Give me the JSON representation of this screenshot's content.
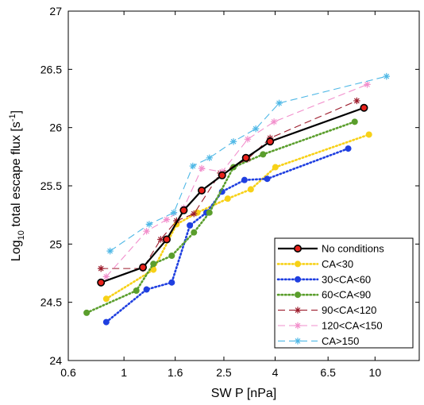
{
  "chart_data": {
    "type": "line",
    "xlabel": "SW P [nPa]",
    "ylabel_main": "Log",
    "ylabel_sub": "10",
    "ylabel_rest": " total escape flux [s",
    "ylabel_sup": "-1",
    "ylabel_end": "]",
    "xscale": "log",
    "xlim": [
      0.6,
      15
    ],
    "ylim": [
      24,
      27
    ],
    "xticks": [
      0.6,
      1,
      1.6,
      2.5,
      4,
      6.5,
      10
    ],
    "xtick_labels": [
      "0.6",
      "1",
      "1.6",
      "2.5",
      "4",
      "6.5",
      "10"
    ],
    "yticks": [
      24,
      24.5,
      25,
      25.5,
      26,
      26.5,
      27
    ],
    "ytick_labels": [
      "24",
      "24.5",
      "25",
      "25.5",
      "26",
      "26.5",
      "27"
    ],
    "legend_position": "bottom-right",
    "series": [
      {
        "name": "No conditions",
        "color": "#000000",
        "marker_fill": "#e8221b",
        "style": "solid",
        "marker": "circle",
        "points": [
          [
            0.81,
            24.67
          ],
          [
            1.19,
            24.8
          ],
          [
            1.48,
            25.04
          ],
          [
            1.73,
            25.29
          ],
          [
            2.04,
            25.46
          ],
          [
            2.46,
            25.59
          ],
          [
            3.06,
            25.74
          ],
          [
            3.82,
            25.88
          ],
          [
            9.04,
            26.17
          ]
        ]
      },
      {
        "name": "CA<30",
        "color": "#f7d117",
        "style": "dotted",
        "marker": "dot",
        "points": [
          [
            0.85,
            24.53
          ],
          [
            1.31,
            24.78
          ],
          [
            1.62,
            25.17
          ],
          [
            1.96,
            25.27
          ],
          [
            2.59,
            25.39
          ],
          [
            3.2,
            25.47
          ],
          [
            4.01,
            25.66
          ],
          [
            9.46,
            25.94
          ]
        ]
      },
      {
        "name": "30<CA<60",
        "color": "#1f3fe0",
        "style": "dotted",
        "marker": "dot",
        "points": [
          [
            0.85,
            24.33
          ],
          [
            1.23,
            24.61
          ],
          [
            1.55,
            24.67
          ],
          [
            1.83,
            25.16
          ],
          [
            2.13,
            25.27
          ],
          [
            2.46,
            25.45
          ],
          [
            3.02,
            25.55
          ],
          [
            3.72,
            25.56
          ],
          [
            7.82,
            25.82
          ]
        ]
      },
      {
        "name": "60<CA<90",
        "color": "#5a9e2c",
        "style": "dotted",
        "marker": "dot",
        "points": [
          [
            0.71,
            24.41
          ],
          [
            1.12,
            24.6
          ],
          [
            1.31,
            24.83
          ],
          [
            1.55,
            24.9
          ],
          [
            1.9,
            25.1
          ],
          [
            2.19,
            25.27
          ],
          [
            2.73,
            25.66
          ],
          [
            3.58,
            25.77
          ],
          [
            8.3,
            26.05
          ]
        ]
      },
      {
        "name": "90<CA<120",
        "color": "#9c1b2b",
        "style": "dashed",
        "marker": "star",
        "points": [
          [
            0.81,
            24.79
          ],
          [
            1.19,
            24.79
          ],
          [
            1.4,
            25.04
          ],
          [
            1.62,
            25.2
          ],
          [
            1.9,
            25.26
          ],
          [
            2.42,
            25.61
          ],
          [
            3.11,
            25.73
          ],
          [
            3.82,
            25.91
          ],
          [
            8.46,
            26.23
          ]
        ]
      },
      {
        "name": "120<CA<150",
        "color": "#f28fcc",
        "style": "dashed",
        "marker": "star",
        "points": [
          [
            0.85,
            24.72
          ],
          [
            1.23,
            25.11
          ],
          [
            1.48,
            25.21
          ],
          [
            1.73,
            25.31
          ],
          [
            2.04,
            25.65
          ],
          [
            2.46,
            25.62
          ],
          [
            3.11,
            25.9
          ],
          [
            3.96,
            26.05
          ],
          [
            9.31,
            26.37
          ]
        ]
      },
      {
        "name": "CA>150",
        "color": "#4fb8e6",
        "style": "dashed",
        "marker": "star",
        "points": [
          [
            0.88,
            24.94
          ],
          [
            1.26,
            25.17
          ],
          [
            1.58,
            25.27
          ],
          [
            1.88,
            25.67
          ],
          [
            2.19,
            25.74
          ],
          [
            2.73,
            25.88
          ],
          [
            3.35,
            25.99
          ],
          [
            4.15,
            26.21
          ],
          [
            11.11,
            26.44
          ]
        ]
      }
    ]
  }
}
